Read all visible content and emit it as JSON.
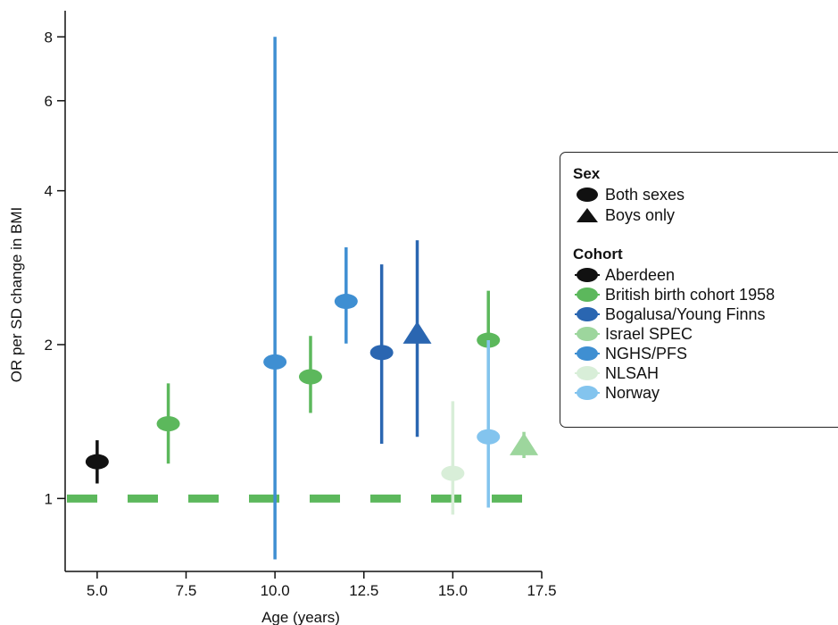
{
  "chart_data": {
    "type": "scatter",
    "xlabel": "Age (years)",
    "ylabel": "OR per SD change in BMI",
    "xlim": [
      4.1,
      17.5
    ],
    "xticks": [
      "5.0",
      "7.5",
      "10.0",
      "12.5",
      "15.0",
      "17.5"
    ],
    "y_scale": "log",
    "ylim": [
      0.72,
      9
    ],
    "yticks": [
      "1",
      "2",
      "4",
      "6",
      "8"
    ],
    "reference_line": {
      "y": 1,
      "style": "dashed",
      "color": "#5cb85c"
    },
    "series": [
      {
        "name": "Aberdeen",
        "color": "#111111",
        "points": [
          {
            "x": 5,
            "y": 1.18,
            "lower": 1.07,
            "upper": 1.3,
            "shape": "circle"
          }
        ]
      },
      {
        "name": "British birth cohort 1958",
        "color": "#5cb85c",
        "points": [
          {
            "x": 7,
            "y": 1.4,
            "lower": 1.17,
            "upper": 1.68,
            "shape": "circle"
          },
          {
            "x": 11,
            "y": 1.73,
            "lower": 1.47,
            "upper": 2.08,
            "shape": "circle"
          },
          {
            "x": 16,
            "y": 2.04,
            "lower": 1.63,
            "upper": 2.55,
            "shape": "circle"
          }
        ]
      },
      {
        "name": "Bogalusa/Young Finns",
        "color": "#2a66b1",
        "points": [
          {
            "x": 13,
            "y": 1.93,
            "lower": 1.28,
            "upper": 2.87,
            "shape": "circle"
          },
          {
            "x": 14,
            "y": 2.1,
            "lower": 1.32,
            "upper": 3.2,
            "shape": "triangle"
          }
        ]
      },
      {
        "name": "Israel SPEC",
        "color": "#9dd69d",
        "points": [
          {
            "x": 17,
            "y": 1.27,
            "lower": 1.2,
            "upper": 1.35,
            "shape": "triangle"
          }
        ]
      },
      {
        "name": "NGHS/PFS",
        "color": "#3f8fd2",
        "points": [
          {
            "x": 10,
            "y": 1.85,
            "lower": 0.76,
            "upper": 8.0,
            "shape": "circle"
          },
          {
            "x": 12,
            "y": 2.43,
            "lower": 2.01,
            "upper": 3.1,
            "shape": "circle"
          }
        ]
      },
      {
        "name": "NLSAH",
        "color": "#d8eed8",
        "points": [
          {
            "x": 15,
            "y": 1.12,
            "lower": 0.93,
            "upper": 1.55,
            "shape": "circle"
          }
        ]
      },
      {
        "name": "Norway",
        "color": "#83c4ee",
        "points": [
          {
            "x": 16,
            "y": 1.32,
            "lower": 0.96,
            "upper": 2.04,
            "shape": "circle"
          }
        ]
      }
    ],
    "legend": {
      "placement": "right",
      "sex_title": "Sex",
      "sex_items": [
        {
          "label": "Both sexes",
          "shape": "circle"
        },
        {
          "label": "Boys only",
          "shape": "triangle"
        }
      ],
      "cohort_title": "Cohort"
    }
  }
}
